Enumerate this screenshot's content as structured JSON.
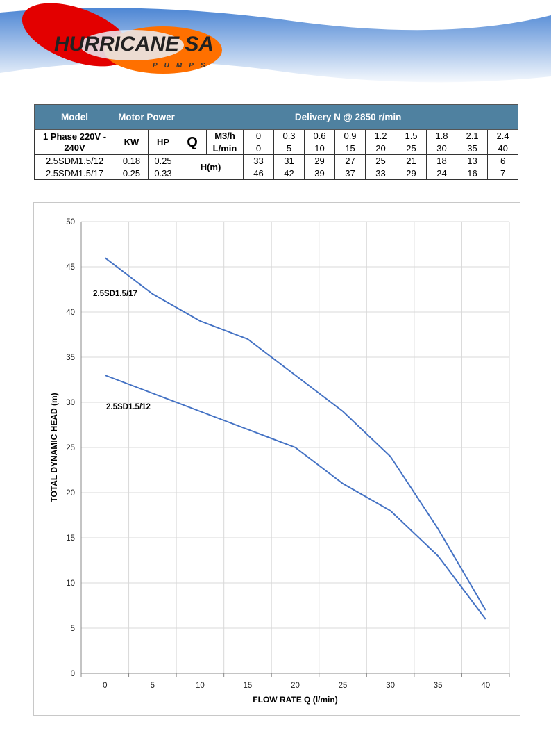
{
  "logo": {
    "brand": "HURRICANE SA",
    "sub": "PUMPS"
  },
  "table": {
    "h_model": "Model",
    "h_motor": "Motor Power",
    "h_delivery": "Delivery N @ 2850 r/min",
    "phase": "1 Phase 220V - 240V",
    "kw": "KW",
    "hp": "HP",
    "q": "Q",
    "m3h": "M3/h",
    "lmin": "L/min",
    "hm": "H(m)",
    "m3h_values": [
      "0",
      "0.3",
      "0.6",
      "0.9",
      "1.2",
      "1.5",
      "1.8",
      "2.1",
      "2.4"
    ],
    "lmin_values": [
      "0",
      "5",
      "10",
      "15",
      "20",
      "25",
      "30",
      "35",
      "40"
    ],
    "rows": [
      {
        "model": "2.5SDM1.5/12",
        "kw": "0.18",
        "hp": "0.25",
        "h": [
          "33",
          "31",
          "29",
          "27",
          "25",
          "21",
          "18",
          "13",
          "6"
        ]
      },
      {
        "model": "2.5SDM1.5/17",
        "kw": "0.25",
        "hp": "0.33",
        "h": [
          "46",
          "42",
          "39",
          "37",
          "33",
          "29",
          "24",
          "16",
          "7"
        ]
      }
    ]
  },
  "chart_data": {
    "type": "line",
    "xlabel": "FLOW RATE Q (l/min)",
    "ylabel": "TOTAL DYNAMIC HEAD (m)",
    "categories": [
      0,
      5,
      10,
      15,
      20,
      25,
      30,
      35,
      40
    ],
    "ylim": [
      0,
      50
    ],
    "yticks": [
      0,
      5,
      10,
      15,
      20,
      25,
      30,
      35,
      40,
      45,
      50
    ],
    "grid": true,
    "line_color": "#4472C4",
    "series": [
      {
        "name": "2.5SD1.5/17",
        "values": [
          46,
          42,
          39,
          37,
          33,
          29,
          24,
          16,
          7
        ]
      },
      {
        "name": "2.5SD1.5/12",
        "values": [
          33,
          31,
          29,
          27,
          25,
          21,
          18,
          13,
          6
        ]
      }
    ]
  }
}
